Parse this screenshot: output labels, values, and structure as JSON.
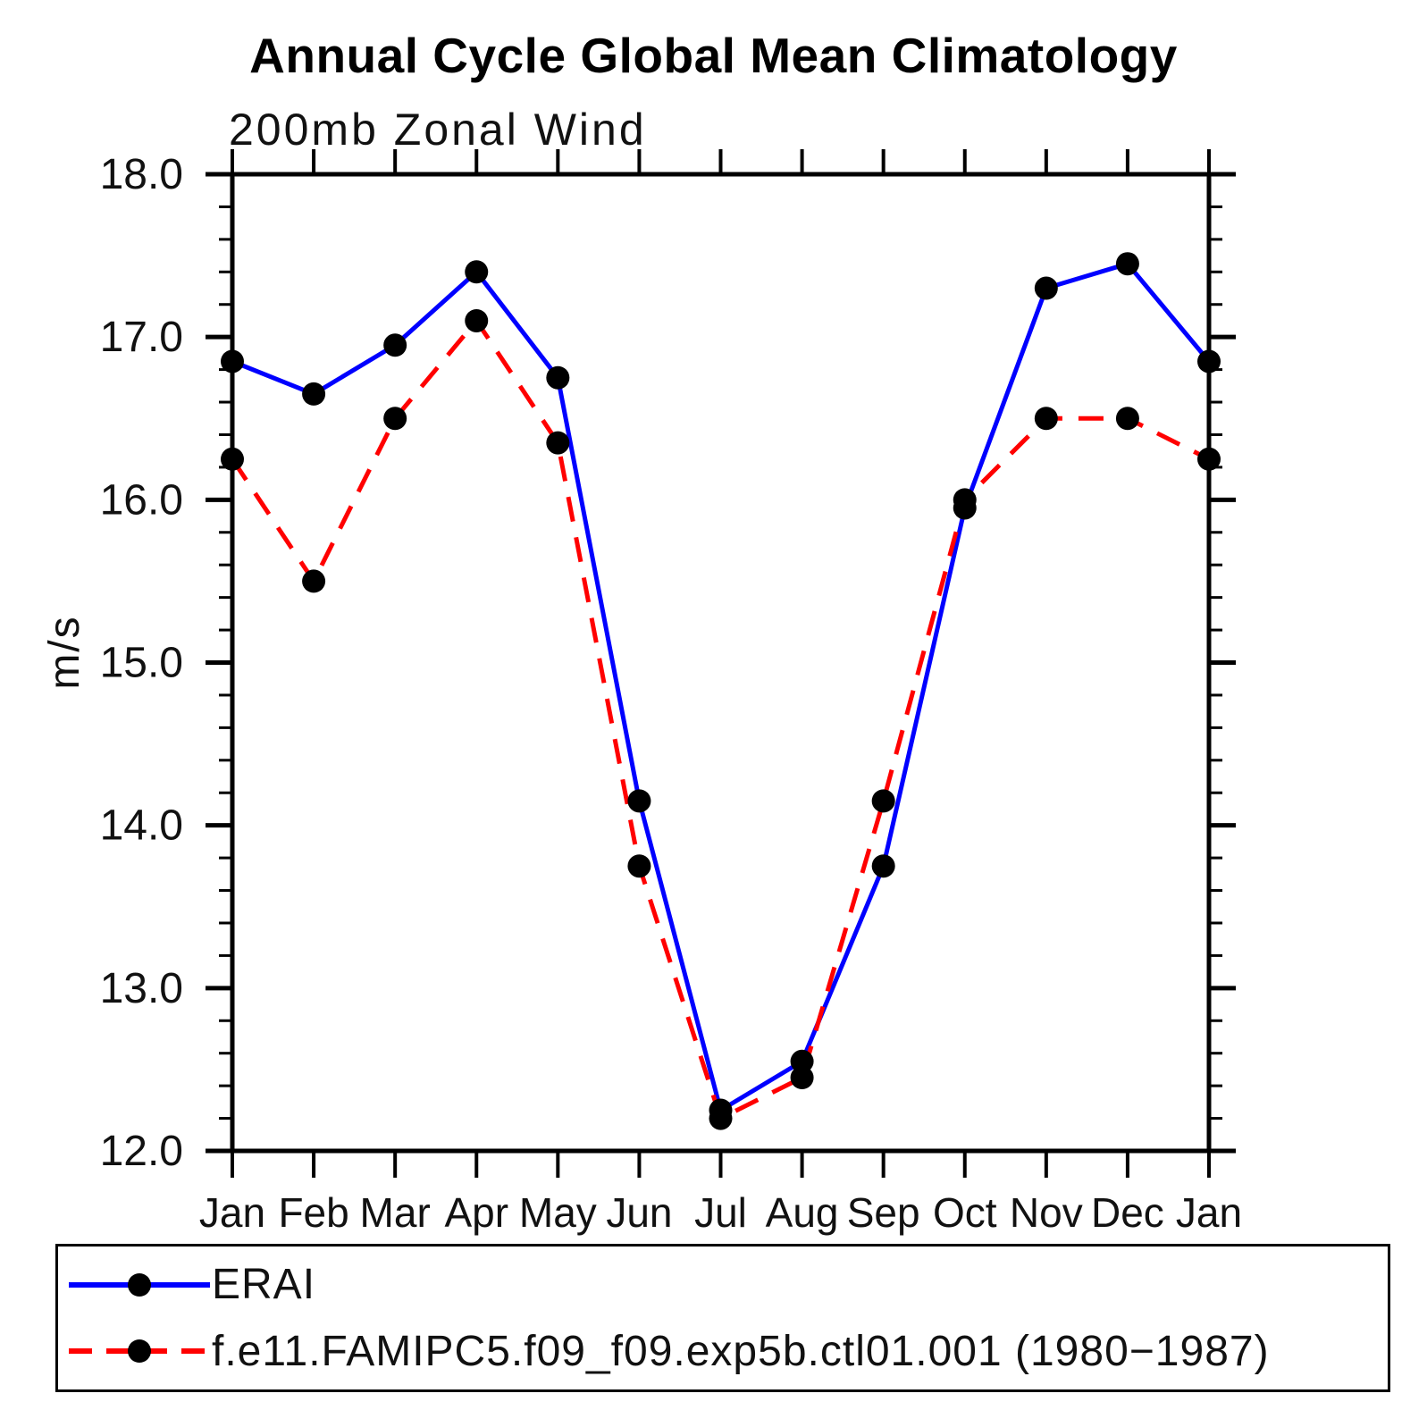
{
  "title": "Annual Cycle Global Mean Climatology",
  "subtitle": "200mb Zonal Wind",
  "y_axis_label": "m/s",
  "colors": {
    "erai_line": "#0000ff",
    "model_line": "#ff0000",
    "marker": "#000000",
    "axis": "#000000"
  },
  "legend": {
    "items": [
      {
        "label": "ERAI",
        "color": "#0000ff",
        "style": "solid"
      },
      {
        "label": "f.e11.FAMIPC5.f09_f09.exp5b.ctl01.001 (1980−1987)",
        "color": "#ff0000",
        "style": "dashed"
      }
    ]
  },
  "chart_data": {
    "type": "line",
    "title": "Annual Cycle Global Mean Climatology",
    "subtitle": "200mb Zonal Wind",
    "xlabel": "",
    "ylabel": "m/s",
    "categories": [
      "Jan",
      "Feb",
      "Mar",
      "Apr",
      "May",
      "Jun",
      "Jul",
      "Aug",
      "Sep",
      "Oct",
      "Nov",
      "Dec",
      "Jan"
    ],
    "series": [
      {
        "name": "ERAI",
        "color": "#0000ff",
        "line_style": "solid",
        "marker": "circle",
        "marker_color": "#000000",
        "values": [
          16.85,
          16.65,
          16.95,
          17.4,
          16.75,
          14.15,
          12.25,
          12.55,
          13.75,
          15.95,
          17.3,
          17.45,
          16.85
        ]
      },
      {
        "name": "f.e11.FAMIPC5.f09_f09.exp5b.ctl01.001 (1980−1987)",
        "color": "#ff0000",
        "line_style": "dashed",
        "marker": "circle",
        "marker_color": "#000000",
        "values": [
          16.25,
          15.5,
          16.5,
          17.1,
          16.35,
          13.75,
          12.2,
          12.45,
          14.15,
          16.0,
          16.5,
          16.5,
          16.25
        ]
      }
    ],
    "ylim": [
      12.0,
      18.0
    ],
    "y_major_tick_step": 1.0,
    "y_minor_tick_step": 0.2,
    "y_tick_labels": [
      "12.0",
      "13.0",
      "14.0",
      "15.0",
      "16.0",
      "17.0",
      "18.0"
    ],
    "grid": false,
    "ticks_direction": "out",
    "legend_position": "bottom"
  }
}
